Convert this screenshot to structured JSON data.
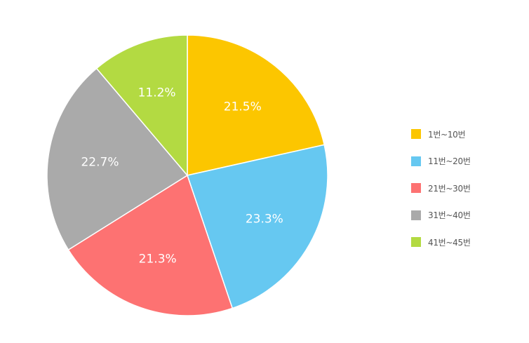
{
  "chart_data": {
    "type": "pie",
    "title": "",
    "categories": [
      "1번~10번",
      "11번~20번",
      "21번~30번",
      "31번~40번",
      "41번~45번"
    ],
    "values": [
      21.5,
      23.3,
      21.3,
      22.7,
      11.2
    ],
    "labels": [
      "21.5%",
      "23.3%",
      "21.3%",
      "22.7%",
      "11.2%"
    ],
    "colors": [
      "#fcc600",
      "#66c8f1",
      "#fd7272",
      "#aaaaaa",
      "#b3da42"
    ],
    "legend_position": "right"
  }
}
